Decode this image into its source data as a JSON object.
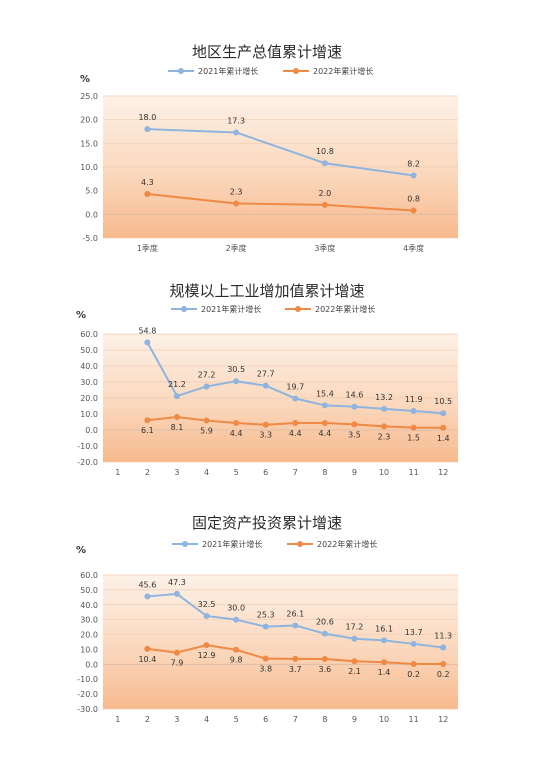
{
  "chart_data": [
    {
      "type": "line",
      "title": "地区生产总值累计增速",
      "unit": "%",
      "categories": [
        "1季度",
        "2季度",
        "3季度",
        "4季度"
      ],
      "ylim": [
        -5,
        25
      ],
      "yticks": [
        "-5.0",
        "0.0",
        "5.0",
        "10.0",
        "15.0",
        "20.0",
        "25.0"
      ],
      "legend_position": "top",
      "grid": true,
      "series": [
        {
          "name": "2021年累计增长",
          "color": "#8fb4dd",
          "values": [
            18.0,
            17.3,
            10.8,
            8.2
          ],
          "labels": [
            "18.0",
            "17.3",
            "10.8",
            "8.2"
          ]
        },
        {
          "name": "2022年累计增长",
          "color": "#ee8a45",
          "values": [
            4.3,
            2.3,
            2.0,
            0.8
          ],
          "labels": [
            "4.3",
            "2.3",
            "2.0",
            "0.8"
          ]
        }
      ]
    },
    {
      "type": "line",
      "title": "规模以上工业增加值累计增速",
      "unit": "%",
      "categories": [
        "1",
        "2",
        "3",
        "4",
        "5",
        "6",
        "7",
        "8",
        "9",
        "10",
        "11",
        "12"
      ],
      "ylim": [
        -20,
        60
      ],
      "yticks": [
        "-20.0",
        "-10.0",
        "0.0",
        "10.0",
        "20.0",
        "30.0",
        "40.0",
        "50.0",
        "60.0"
      ],
      "legend_position": "top",
      "grid": true,
      "series": [
        {
          "name": "2021年累计增长",
          "color": "#8fb4dd",
          "values": [
            null,
            54.8,
            21.2,
            27.2,
            30.5,
            27.7,
            19.7,
            15.4,
            14.6,
            13.2,
            11.9,
            10.5
          ],
          "labels": [
            "",
            "54.8",
            "21.2",
            "27.2",
            "30.5",
            "27.7",
            "19.7",
            "15.4",
            "14.6",
            "13.2",
            "11.9",
            "10.5"
          ]
        },
        {
          "name": "2022年累计增长",
          "color": "#ee8a45",
          "values": [
            null,
            6.1,
            8.1,
            5.9,
            4.4,
            3.3,
            4.4,
            4.4,
            3.5,
            2.3,
            1.5,
            1.4
          ],
          "labels": [
            "",
            "6.1",
            "8.1",
            "5.9",
            "4.4",
            "3.3",
            "4.4",
            "4.4",
            "3.5",
            "2.3",
            "1.5",
            "1.4"
          ]
        }
      ]
    },
    {
      "type": "line",
      "title": "固定资产投资累计增速",
      "unit": "%",
      "categories": [
        "1",
        "2",
        "3",
        "4",
        "5",
        "6",
        "7",
        "8",
        "9",
        "10",
        "11",
        "12"
      ],
      "ylim": [
        -30,
        60
      ],
      "yticks": [
        "-30.0",
        "-20.0",
        "-10.0",
        "0.0",
        "10.0",
        "20.0",
        "30.0",
        "40.0",
        "50.0",
        "60.0"
      ],
      "legend_position": "top",
      "grid": true,
      "series": [
        {
          "name": "2021年累计增长",
          "color": "#8fb4dd",
          "values": [
            null,
            45.6,
            47.3,
            32.5,
            30.0,
            25.3,
            26.1,
            20.6,
            17.2,
            16.1,
            13.7,
            11.3
          ],
          "labels": [
            "",
            "45.6",
            "47.3",
            "32.5",
            "30.0",
            "25.3",
            "26.1",
            "20.6",
            "17.2",
            "16.1",
            "13.7",
            "11.3"
          ]
        },
        {
          "name": "2022年累计增长",
          "color": "#ee8a45",
          "values": [
            null,
            10.4,
            7.9,
            12.9,
            9.8,
            3.8,
            3.7,
            3.6,
            2.1,
            1.4,
            0.2,
            0.2
          ],
          "labels": [
            "",
            "10.4",
            "7.9",
            "12.9",
            "9.8",
            "3.8",
            "3.7",
            "3.6",
            "2.1",
            "1.4",
            "0.2",
            "0.2"
          ]
        }
      ]
    }
  ]
}
